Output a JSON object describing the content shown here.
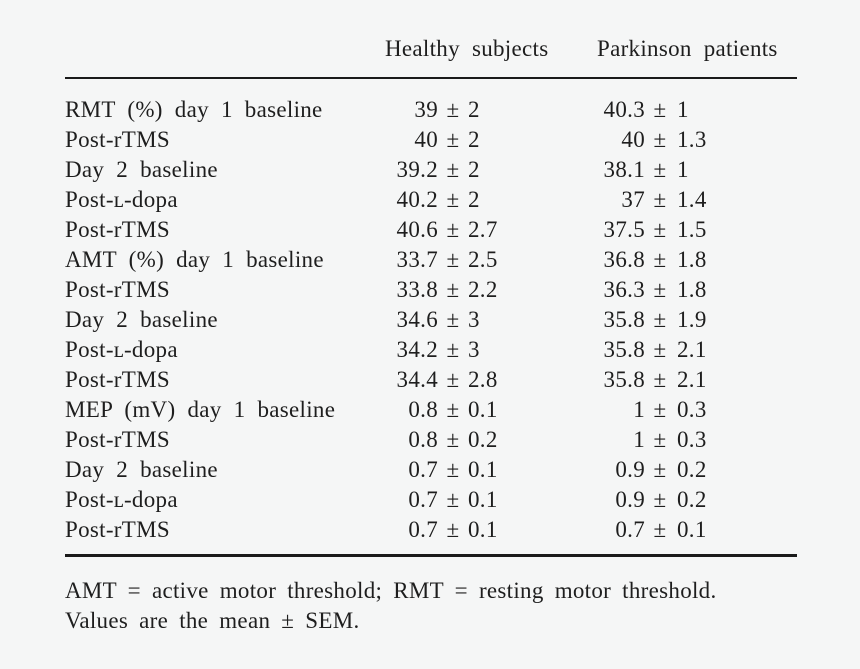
{
  "table": {
    "columns": {
      "healthy": "Healthy subjects",
      "parkinson": "Parkinson patients"
    },
    "plus_minus": "±",
    "rows": [
      {
        "label": "RMT (%) day 1 baseline",
        "healthy_mean": "39",
        "healthy_sem": "2",
        "parkinson_mean": "40.3",
        "parkinson_sem": "1"
      },
      {
        "label": "Post-rTMS",
        "healthy_mean": "40",
        "healthy_sem": "2",
        "parkinson_mean": "40",
        "parkinson_sem": "1.3"
      },
      {
        "label": "Day 2 baseline",
        "healthy_mean": "39.2",
        "healthy_sem": "2",
        "parkinson_mean": "38.1",
        "parkinson_sem": "1"
      },
      {
        "label": "Post-ʟ-dopa",
        "healthy_mean": "40.2",
        "healthy_sem": "2",
        "parkinson_mean": "37",
        "parkinson_sem": "1.4"
      },
      {
        "label": "Post-rTMS",
        "healthy_mean": "40.6",
        "healthy_sem": "2.7",
        "parkinson_mean": "37.5",
        "parkinson_sem": "1.5"
      },
      {
        "label": "AMT (%) day 1 baseline",
        "healthy_mean": "33.7",
        "healthy_sem": "2.5",
        "parkinson_mean": "36.8",
        "parkinson_sem": "1.8"
      },
      {
        "label": "Post-rTMS",
        "healthy_mean": "33.8",
        "healthy_sem": "2.2",
        "parkinson_mean": "36.3",
        "parkinson_sem": "1.8"
      },
      {
        "label": "Day 2 baseline",
        "healthy_mean": "34.6",
        "healthy_sem": "3",
        "parkinson_mean": "35.8",
        "parkinson_sem": "1.9"
      },
      {
        "label": "Post-ʟ-dopa",
        "healthy_mean": "34.2",
        "healthy_sem": "3",
        "parkinson_mean": "35.8",
        "parkinson_sem": "2.1"
      },
      {
        "label": "Post-rTMS",
        "healthy_mean": "34.4",
        "healthy_sem": "2.8",
        "parkinson_mean": "35.8",
        "parkinson_sem": "2.1"
      },
      {
        "label": "MEP (mV) day 1 baseline",
        "healthy_mean": "0.8",
        "healthy_sem": "0.1",
        "parkinson_mean": "1",
        "parkinson_sem": "0.3"
      },
      {
        "label": "Post-rTMS",
        "healthy_mean": "0.8",
        "healthy_sem": "0.2",
        "parkinson_mean": "1",
        "parkinson_sem": "0.3"
      },
      {
        "label": "Day 2 baseline",
        "healthy_mean": "0.7",
        "healthy_sem": "0.1",
        "parkinson_mean": "0.9",
        "parkinson_sem": "0.2"
      },
      {
        "label": "Post-ʟ-dopa",
        "healthy_mean": "0.7",
        "healthy_sem": "0.1",
        "parkinson_mean": "0.9",
        "parkinson_sem": "0.2"
      },
      {
        "label": "Post-rTMS",
        "healthy_mean": "0.7",
        "healthy_sem": "0.1",
        "parkinson_mean": "0.7",
        "parkinson_sem": "0.1"
      }
    ]
  },
  "footnote": {
    "line1": "AMT = active motor threshold; RMT = resting motor threshold.",
    "line2": "Values are the mean ± SEM."
  },
  "colors": {
    "background": "#f5f6f6",
    "text": "#1e1e1e",
    "rule": "#1a1a1a"
  }
}
